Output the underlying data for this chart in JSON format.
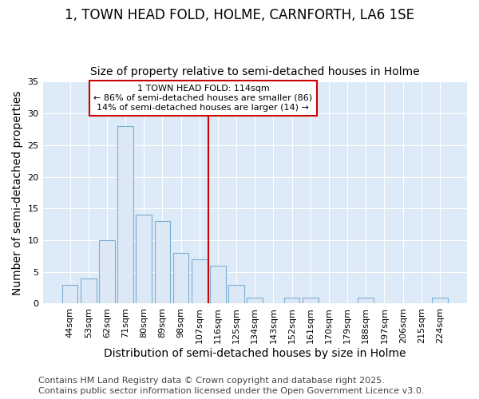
{
  "title1": "1, TOWN HEAD FOLD, HOLME, CARNFORTH, LA6 1SE",
  "title2": "Size of property relative to semi-detached houses in Holme",
  "xlabel": "Distribution of semi-detached houses by size in Holme",
  "ylabel": "Number of semi-detached properties",
  "categories": [
    "44sqm",
    "53sqm",
    "62sqm",
    "71sqm",
    "80sqm",
    "89sqm",
    "98sqm",
    "107sqm",
    "116sqm",
    "125sqm",
    "134sqm",
    "143sqm",
    "152sqm",
    "161sqm",
    "170sqm",
    "179sqm",
    "188sqm",
    "197sqm",
    "206sqm",
    "215sqm",
    "224sqm"
  ],
  "values": [
    3,
    4,
    10,
    28,
    14,
    13,
    8,
    7,
    6,
    3,
    1,
    0,
    1,
    1,
    0,
    0,
    1,
    0,
    0,
    0,
    1
  ],
  "bar_color": "#dce8f5",
  "bar_edge_color": "#7aafd4",
  "ylim": [
    0,
    35
  ],
  "yticks": [
    0,
    5,
    10,
    15,
    20,
    25,
    30,
    35
  ],
  "vline_x_index": 8,
  "vline_color": "#cc0000",
  "annotation_title": "1 TOWN HEAD FOLD: 114sqm",
  "annotation_line1": "← 86% of semi-detached houses are smaller (86)",
  "annotation_line2": "14% of semi-detached houses are larger (14) →",
  "annotation_box_color": "#cc0000",
  "footer1": "Contains HM Land Registry data © Crown copyright and database right 2025.",
  "footer2": "Contains public sector information licensed under the Open Government Licence v3.0.",
  "bg_color": "#ffffff",
  "plot_bg_color": "#ddeaf7",
  "grid_color": "#ffffff",
  "title1_fontsize": 12,
  "title2_fontsize": 10,
  "axis_label_fontsize": 10,
  "tick_fontsize": 8,
  "footer_fontsize": 8,
  "annotation_fontsize": 8
}
